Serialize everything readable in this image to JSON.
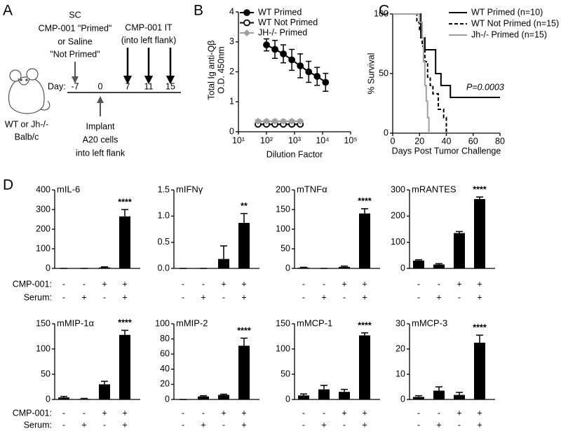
{
  "panel_labels": [
    "A",
    "B",
    "C",
    "D"
  ],
  "diagram": {
    "prime_text": [
      "SC",
      "CMP-001 \"Primed\"",
      "or Saline",
      "\"Not Primed\""
    ],
    "it_text": [
      "CMP-001 IT",
      "(into left flank)"
    ],
    "day_label": "Day:",
    "days": [
      -7,
      0,
      7,
      11,
      15
    ],
    "mouse_text": [
      "WT or Jh-/-",
      "Balb/c"
    ],
    "implant_text": [
      "Implant",
      "A20 cells",
      "into left flank"
    ]
  },
  "conditions": {
    "rows": [
      {
        "label": "CMP-001:",
        "signs": [
          "-",
          "-",
          "+",
          "+"
        ]
      },
      {
        "label": "Serum:",
        "signs": [
          "-",
          "+",
          "-",
          "+"
        ]
      }
    ]
  },
  "chart_data": [
    {
      "type": "line",
      "ylabel": [
        "Total Ig anti-Qβ",
        "O.D. 450nm"
      ],
      "xlabel": "Dilution Factor",
      "xscale": "log",
      "xlim": [
        10,
        100000
      ],
      "xticks": [
        {
          "value": 10,
          "label": "10¹"
        },
        {
          "value": 100,
          "label": "10²"
        },
        {
          "value": 1000,
          "label": "10³"
        },
        {
          "value": 10000,
          "label": "10⁴"
        },
        {
          "value": 100000,
          "label": "10⁵"
        }
      ],
      "ylim": [
        0,
        4
      ],
      "yticks": [
        0,
        1,
        2,
        3,
        4
      ],
      "legend": "top-left",
      "series": [
        {
          "name": "WT Primed",
          "color": "#000000",
          "marker": "circle-filled",
          "x": [
            100,
            200,
            400,
            800,
            1600,
            3200,
            6400,
            12800
          ],
          "values": [
            2.9,
            2.75,
            2.6,
            2.4,
            2.2,
            2.0,
            1.85,
            1.65
          ],
          "errors": [
            0.2,
            0.3,
            0.3,
            0.35,
            0.4,
            0.35,
            0.3,
            0.3
          ]
        },
        {
          "name": "WT Not Primed",
          "color": "#000000",
          "marker": "circle-open",
          "x": [
            50,
            100,
            200,
            400,
            800,
            1600
          ],
          "values": [
            0.25,
            0.25,
            0.25,
            0.25,
            0.25,
            0.25
          ],
          "errors": [
            0.05,
            0.05,
            0.05,
            0.05,
            0.05,
            0.05
          ]
        },
        {
          "name": "JH-/- Primed",
          "color": "#a0a0a0",
          "marker": "diamond",
          "x": [
            50,
            100,
            200,
            400,
            800,
            1600
          ],
          "values": [
            0.35,
            0.35,
            0.35,
            0.35,
            0.35,
            0.35
          ],
          "errors": [
            0.05,
            0.05,
            0.05,
            0.05,
            0.05,
            0.05
          ]
        }
      ]
    },
    {
      "type": "step",
      "ylabel": "% Survival",
      "xlabel": "Days Post Tumor Challenge",
      "xlim": [
        0,
        80
      ],
      "xticks": [
        0,
        20,
        40,
        60,
        80
      ],
      "ylim": [
        0,
        100
      ],
      "yticks": [
        0,
        50,
        100
      ],
      "annotation": "P=0.0003",
      "legend": "top-right",
      "series": [
        {
          "name": "WT Primed (n=10)",
          "color": "#000000",
          "dash": "solid",
          "x": [
            0,
            21,
            24,
            32,
            36,
            43,
            80
          ],
          "values": [
            100,
            80,
            70,
            50,
            40,
            30,
            30
          ]
        },
        {
          "name": "WT Not Primed (n=15)",
          "color": "#000000",
          "dash": "dashed",
          "x": [
            0,
            18,
            20,
            22,
            24,
            26,
            28,
            30,
            34,
            38,
            40
          ],
          "values": [
            100,
            93,
            87,
            73,
            60,
            47,
            40,
            33,
            20,
            13,
            0
          ]
        },
        {
          "name": "Jh-/- Primed (n=15)",
          "color": "#a0a0a0",
          "dash": "solid",
          "x": [
            0,
            20,
            22,
            23,
            24,
            25,
            26,
            27
          ],
          "values": [
            100,
            93,
            80,
            60,
            40,
            27,
            13,
            0
          ]
        }
      ]
    },
    {
      "type": "bar",
      "title": "mIL-6",
      "ylim": [
        0,
        400
      ],
      "yticks": [
        0,
        100,
        200,
        300,
        400
      ],
      "values": [
        0,
        0,
        5,
        265
      ],
      "errors": [
        0,
        0,
        3,
        35
      ],
      "significance": [
        null,
        null,
        null,
        "****"
      ],
      "color": "#000000"
    },
    {
      "type": "bar",
      "title": "mIFNγ",
      "ylim": [
        0,
        1.5
      ],
      "yticks": [
        {
          "value": 0,
          "label": "0.0"
        },
        {
          "value": 0.5,
          "label": "0.5"
        },
        {
          "value": 1,
          "label": "1.0"
        },
        {
          "value": 1.5,
          "label": "1.5"
        }
      ],
      "values": [
        0,
        0,
        0.18,
        0.87
      ],
      "errors": [
        0,
        0,
        0.25,
        0.18
      ],
      "significance": [
        null,
        null,
        null,
        "**"
      ],
      "color": "#000000"
    },
    {
      "type": "bar",
      "title": "mTNFα",
      "ylim": [
        0,
        200
      ],
      "yticks": [
        0,
        50,
        100,
        150,
        200
      ],
      "values": [
        2,
        0,
        4,
        140
      ],
      "errors": [
        1,
        0,
        2,
        12
      ],
      "significance": [
        null,
        null,
        null,
        "****"
      ],
      "color": "#000000"
    },
    {
      "type": "bar",
      "title": "mRANTES",
      "ylim": [
        0,
        300
      ],
      "yticks": [
        0,
        100,
        200,
        300
      ],
      "values": [
        30,
        15,
        135,
        265
      ],
      "errors": [
        3,
        3,
        6,
        8
      ],
      "significance": [
        null,
        null,
        null,
        "****"
      ],
      "color": "#000000"
    },
    {
      "type": "bar",
      "title": "mMIP-1α",
      "ylim": [
        0,
        150
      ],
      "yticks": [
        0,
        50,
        100,
        150
      ],
      "values": [
        4,
        1,
        30,
        128
      ],
      "errors": [
        2,
        1,
        6,
        9
      ],
      "significance": [
        null,
        null,
        null,
        "****"
      ],
      "color": "#000000"
    },
    {
      "type": "bar",
      "title": "mMIP-2",
      "ylim": [
        0,
        100
      ],
      "yticks": [
        0,
        20,
        40,
        60,
        80,
        100
      ],
      "values": [
        0,
        4,
        6,
        71
      ],
      "errors": [
        0,
        1,
        1,
        10
      ],
      "significance": [
        null,
        null,
        null,
        "****"
      ],
      "color": "#000000"
    },
    {
      "type": "bar",
      "title": "mMCP-1",
      "ylim": [
        0,
        150
      ],
      "yticks": [
        0,
        50,
        100,
        150
      ],
      "values": [
        8,
        20,
        15,
        127
      ],
      "errors": [
        3,
        8,
        5,
        5
      ],
      "significance": [
        null,
        null,
        null,
        "****"
      ],
      "color": "#000000"
    },
    {
      "type": "bar",
      "title": "mMCP-3",
      "ylim": [
        0,
        30
      ],
      "yticks": [
        0,
        10,
        20,
        30
      ],
      "values": [
        1,
        3.5,
        1.8,
        22.5
      ],
      "errors": [
        0.5,
        1.5,
        1,
        3
      ],
      "significance": [
        null,
        null,
        null,
        "****"
      ],
      "color": "#000000"
    }
  ]
}
